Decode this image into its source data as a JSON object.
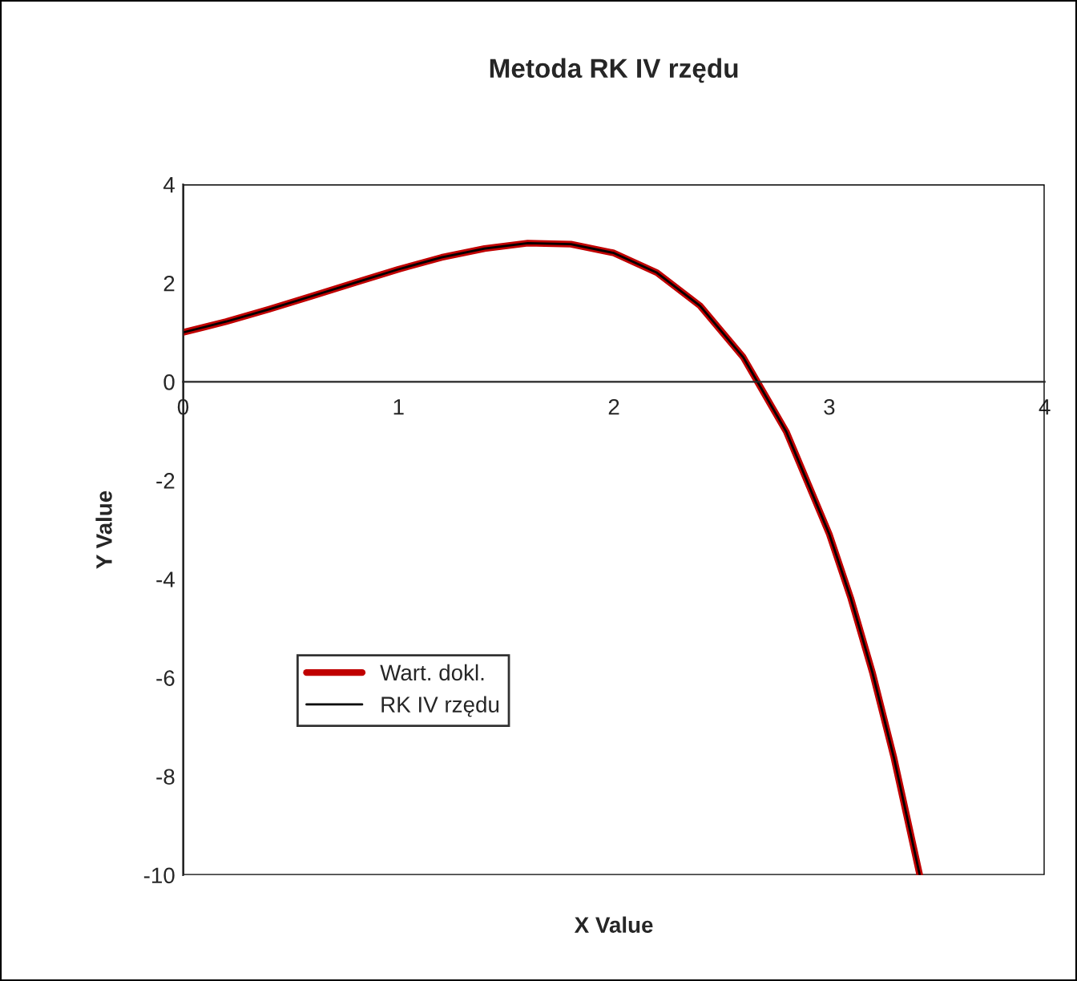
{
  "chart_data": {
    "type": "line",
    "title": "Metoda RK IV rzędu",
    "xlabel": "X Value",
    "ylabel": "Y Value",
    "x": [
      0,
      0.2,
      0.4,
      0.6,
      0.8,
      1.0,
      1.2,
      1.4,
      1.6,
      1.8,
      2.0,
      2.2,
      2.4,
      2.6,
      2.8,
      3.0,
      3.1,
      3.2,
      3.3,
      3.42
    ],
    "series": [
      {
        "name": "Wart. dokl.",
        "color": "#c00000",
        "values": [
          1,
          1.22,
          1.47,
          1.74,
          2.01,
          2.28,
          2.52,
          2.7,
          2.81,
          2.79,
          2.61,
          2.21,
          1.54,
          0.5,
          -1.01,
          -3.09,
          -4.39,
          -5.89,
          -7.62,
          -10
        ]
      },
      {
        "name": "RK IV rzędu",
        "color": "#000000",
        "values": [
          1,
          1.22,
          1.47,
          1.74,
          2.01,
          2.28,
          2.52,
          2.7,
          2.81,
          2.79,
          2.61,
          2.21,
          1.54,
          0.5,
          -1.01,
          -3.09,
          -4.39,
          -5.89,
          -7.62,
          -10
        ]
      }
    ],
    "xlim": [
      0,
      4
    ],
    "ylim": [
      -10,
      4
    ],
    "xticks": [
      0,
      1,
      2,
      3,
      4
    ],
    "yticks": [
      -10,
      -8,
      -6,
      -4,
      -2,
      0,
      2,
      4
    ],
    "legend": "bottom left",
    "grid": false,
    "marker": "none",
    "line_style": "solid"
  }
}
